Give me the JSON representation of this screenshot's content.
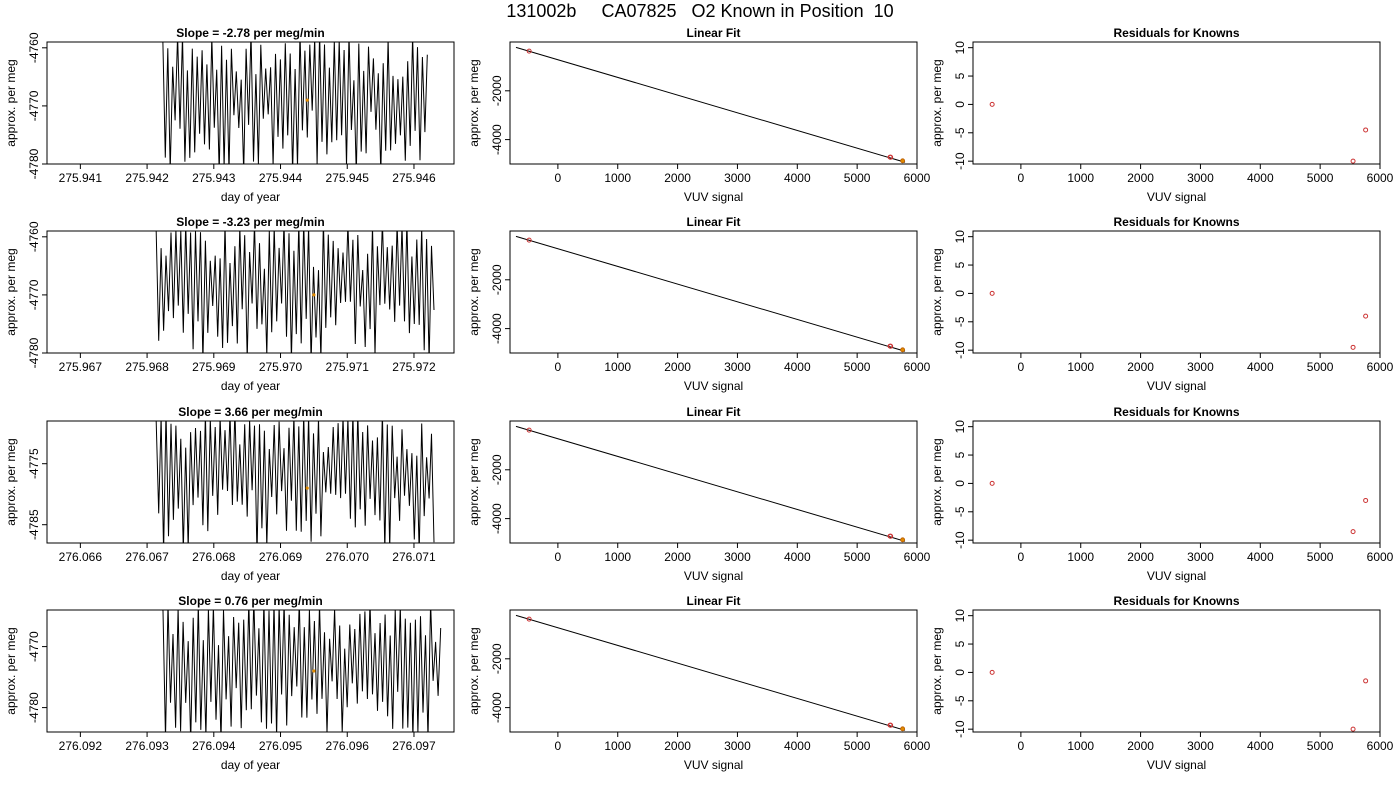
{
  "title": "131002b     CA07825   O2 Known in Position  10",
  "colors": {
    "line": "#000000",
    "point_red": "#cc3333",
    "point_orange": "#e08a00",
    "box": "#000000"
  },
  "chart_data": [
    {
      "type": "line",
      "title": "Slope =  -2.78  per meg/min",
      "xlabel": "day of year",
      "ylabel": "approx. per meg",
      "xlim": [
        275.9405,
        275.9466
      ],
      "ylim": [
        -4780,
        -4759
      ],
      "xticks": [
        275.941,
        275.942,
        275.943,
        275.944,
        275.945,
        275.946
      ],
      "xticklabels": [
        "275.941",
        "275.942",
        "275.943",
        "275.944",
        "275.945",
        "275.946"
      ],
      "yticks": [
        -4780,
        -4770,
        -4760
      ],
      "yticklabels": [
        "-4780",
        "-4770",
        "-4760"
      ],
      "trace": {
        "x_start": 275.9422,
        "x_end": 275.9462,
        "n": 110,
        "low": -4782,
        "high": -4757,
        "seed": 11
      },
      "marker": {
        "x": 275.9444,
        "y": -4769
      }
    },
    {
      "type": "scatter",
      "title": "Linear Fit",
      "xlabel": "VUV signal",
      "ylabel": "approx. per meg",
      "xlim": [
        -800,
        6000
      ],
      "ylim": [
        -5000,
        0
      ],
      "xticks": [
        0,
        1000,
        2000,
        3000,
        4000,
        5000,
        6000
      ],
      "xticklabels": [
        "0",
        "1000",
        "2000",
        "3000",
        "4000",
        "5000",
        "6000"
      ],
      "yticks": [
        -4000,
        -2000
      ],
      "yticklabels": [
        "-4000",
        "-2000"
      ],
      "fit_line": {
        "x": [
          -700,
          5800
        ],
        "y": [
          -220,
          -4930
        ]
      },
      "points": [
        {
          "x": -480,
          "y": -375
        },
        {
          "x": 5550,
          "y": -4720
        },
        {
          "x": 5560,
          "y": -4725
        }
      ],
      "highlight": {
        "x": 5760,
        "y": -4870
      }
    },
    {
      "type": "scatter",
      "title": "Residuals for Knowns",
      "xlabel": "VUV signal",
      "ylabel": "approx. per meg",
      "xlim": [
        -800,
        6000
      ],
      "ylim": [
        -10.5,
        11
      ],
      "xticks": [
        0,
        1000,
        2000,
        3000,
        4000,
        5000,
        6000
      ],
      "xticklabels": [
        "0",
        "1000",
        "2000",
        "3000",
        "4000",
        "5000",
        "6000"
      ],
      "yticks": [
        -10,
        -5,
        0,
        5,
        10
      ],
      "yticklabels": [
        "-10",
        "-5",
        "0",
        "5",
        "10"
      ],
      "points": [
        {
          "x": -480,
          "y": 0
        },
        {
          "x": 5550,
          "y": -10
        },
        {
          "x": 5760,
          "y": -4.5
        }
      ]
    },
    {
      "type": "line",
      "title": "Slope =  -3.23  per meg/min",
      "xlabel": "day of year",
      "ylabel": "approx. per meg",
      "xlim": [
        275.9665,
        275.9726
      ],
      "ylim": [
        -4780,
        -4759
      ],
      "xticks": [
        275.967,
        275.968,
        275.969,
        275.97,
        275.971,
        275.972
      ],
      "xticklabels": [
        "275.967",
        "275.968",
        "275.969",
        "275.970",
        "275.971",
        "275.972"
      ],
      "yticks": [
        -4780,
        -4770,
        -4760
      ],
      "yticklabels": [
        "-4780",
        "-4770",
        "-4760"
      ],
      "trace": {
        "x_start": 275.9681,
        "x_end": 275.9723,
        "n": 115,
        "low": -4782,
        "high": -4757,
        "seed": 23
      },
      "marker": {
        "x": 275.9705,
        "y": -4770
      }
    },
    {
      "type": "scatter",
      "title": "Linear Fit",
      "xlabel": "VUV signal",
      "ylabel": "approx. per meg",
      "xlim": [
        -800,
        6000
      ],
      "ylim": [
        -5000,
        0
      ],
      "xticks": [
        0,
        1000,
        2000,
        3000,
        4000,
        5000,
        6000
      ],
      "xticklabels": [
        "0",
        "1000",
        "2000",
        "3000",
        "4000",
        "5000",
        "6000"
      ],
      "yticks": [
        -4000,
        -2000
      ],
      "yticklabels": [
        "-4000",
        "-2000"
      ],
      "fit_line": {
        "x": [
          -700,
          5800
        ],
        "y": [
          -220,
          -4930
        ]
      },
      "points": [
        {
          "x": -480,
          "y": -375
        },
        {
          "x": 5550,
          "y": -4720
        },
        {
          "x": 5560,
          "y": -4725
        }
      ],
      "highlight": {
        "x": 5760,
        "y": -4870
      }
    },
    {
      "type": "scatter",
      "title": "Residuals for Knowns",
      "xlabel": "VUV signal",
      "ylabel": "approx. per meg",
      "xlim": [
        -800,
        6000
      ],
      "ylim": [
        -10.5,
        11
      ],
      "xticks": [
        0,
        1000,
        2000,
        3000,
        4000,
        5000,
        6000
      ],
      "xticklabels": [
        "0",
        "1000",
        "2000",
        "3000",
        "4000",
        "5000",
        "6000"
      ],
      "yticks": [
        -10,
        -5,
        0,
        5,
        10
      ],
      "yticklabels": [
        "-10",
        "-5",
        "0",
        "5",
        "10"
      ],
      "points": [
        {
          "x": -480,
          "y": 0
        },
        {
          "x": 5550,
          "y": -9.5
        },
        {
          "x": 5760,
          "y": -4
        }
      ]
    },
    {
      "type": "line",
      "title": "Slope =  3.66  per meg/min",
      "xlabel": "day of year",
      "ylabel": "approx. per meg",
      "xlim": [
        276.0655,
        276.0716
      ],
      "ylim": [
        -4788,
        -4768
      ],
      "xticks": [
        276.066,
        276.067,
        276.068,
        276.069,
        276.07,
        276.071
      ],
      "xticklabels": [
        "276.066",
        "276.067",
        "276.068",
        "276.069",
        "276.070",
        "276.071"
      ],
      "yticks": [
        -4785,
        -4775
      ],
      "yticklabels": [
        "-4785",
        "-4775"
      ],
      "trace": {
        "x_start": 276.0671,
        "x_end": 276.0713,
        "n": 115,
        "low": -4790,
        "high": -4766,
        "seed": 37
      },
      "marker": {
        "x": 276.0694,
        "y": -4779
      }
    },
    {
      "type": "scatter",
      "title": "Linear Fit",
      "xlabel": "VUV signal",
      "ylabel": "approx. per meg",
      "xlim": [
        -800,
        6000
      ],
      "ylim": [
        -5000,
        0
      ],
      "xticks": [
        0,
        1000,
        2000,
        3000,
        4000,
        5000,
        6000
      ],
      "xticklabels": [
        "0",
        "1000",
        "2000",
        "3000",
        "4000",
        "5000",
        "6000"
      ],
      "yticks": [
        -4000,
        -2000
      ],
      "yticklabels": [
        "-4000",
        "-2000"
      ],
      "fit_line": {
        "x": [
          -700,
          5800
        ],
        "y": [
          -220,
          -4930
        ]
      },
      "points": [
        {
          "x": -480,
          "y": -375
        },
        {
          "x": 5550,
          "y": -4720
        },
        {
          "x": 5560,
          "y": -4725
        }
      ],
      "highlight": {
        "x": 5760,
        "y": -4870
      }
    },
    {
      "type": "scatter",
      "title": "Residuals for Knowns",
      "xlabel": "VUV signal",
      "ylabel": "approx. per meg",
      "xlim": [
        -800,
        6000
      ],
      "ylim": [
        -10.5,
        11
      ],
      "xticks": [
        0,
        1000,
        2000,
        3000,
        4000,
        5000,
        6000
      ],
      "xticklabels": [
        "0",
        "1000",
        "2000",
        "3000",
        "4000",
        "5000",
        "6000"
      ],
      "yticks": [
        -10,
        -5,
        0,
        5,
        10
      ],
      "yticklabels": [
        "-10",
        "-5",
        "0",
        "5",
        "10"
      ],
      "points": [
        {
          "x": -480,
          "y": 0
        },
        {
          "x": 5550,
          "y": -8.5
        },
        {
          "x": 5760,
          "y": -3
        }
      ]
    },
    {
      "type": "line",
      "title": "Slope =  0.76  per meg/min",
      "xlabel": "day of year",
      "ylabel": "approx. per meg",
      "xlim": [
        276.0915,
        276.0976
      ],
      "ylim": [
        -4784,
        -4764
      ],
      "xticks": [
        276.092,
        276.093,
        276.094,
        276.095,
        276.096,
        276.097
      ],
      "xticklabels": [
        "276.092",
        "276.093",
        "276.094",
        "276.095",
        "276.096",
        "276.097"
      ],
      "yticks": [
        -4780,
        -4770
      ],
      "yticklabels": [
        "-4780",
        "-4770"
      ],
      "trace": {
        "x_start": 276.0932,
        "x_end": 276.0974,
        "n": 112,
        "low": -4786,
        "high": -4762,
        "seed": 53
      },
      "marker": {
        "x": 276.0955,
        "y": -4774
      }
    },
    {
      "type": "scatter",
      "title": "Linear Fit",
      "xlabel": "VUV signal",
      "ylabel": "approx. per meg",
      "xlim": [
        -800,
        6000
      ],
      "ylim": [
        -5000,
        0
      ],
      "xticks": [
        0,
        1000,
        2000,
        3000,
        4000,
        5000,
        6000
      ],
      "xticklabels": [
        "0",
        "1000",
        "2000",
        "3000",
        "4000",
        "5000",
        "6000"
      ],
      "yticks": [
        -4000,
        -2000
      ],
      "yticklabels": [
        "-4000",
        "-2000"
      ],
      "fit_line": {
        "x": [
          -700,
          5800
        ],
        "y": [
          -220,
          -4930
        ]
      },
      "points": [
        {
          "x": -480,
          "y": -375
        },
        {
          "x": 5550,
          "y": -4720
        },
        {
          "x": 5560,
          "y": -4725
        }
      ],
      "highlight": {
        "x": 5760,
        "y": -4870
      }
    },
    {
      "type": "scatter",
      "title": "Residuals for Knowns",
      "xlabel": "VUV signal",
      "ylabel": "approx. per meg",
      "xlim": [
        -800,
        6000
      ],
      "ylim": [
        -10.5,
        11
      ],
      "xticks": [
        0,
        1000,
        2000,
        3000,
        4000,
        5000,
        6000
      ],
      "xticklabels": [
        "0",
        "1000",
        "2000",
        "3000",
        "4000",
        "5000",
        "6000"
      ],
      "yticks": [
        -10,
        -5,
        0,
        5,
        10
      ],
      "yticklabels": [
        "-10",
        "-5",
        "0",
        "5",
        "10"
      ],
      "points": [
        {
          "x": -480,
          "y": 0
        },
        {
          "x": 5550,
          "y": -10
        },
        {
          "x": 5760,
          "y": -1.5
        }
      ]
    }
  ]
}
